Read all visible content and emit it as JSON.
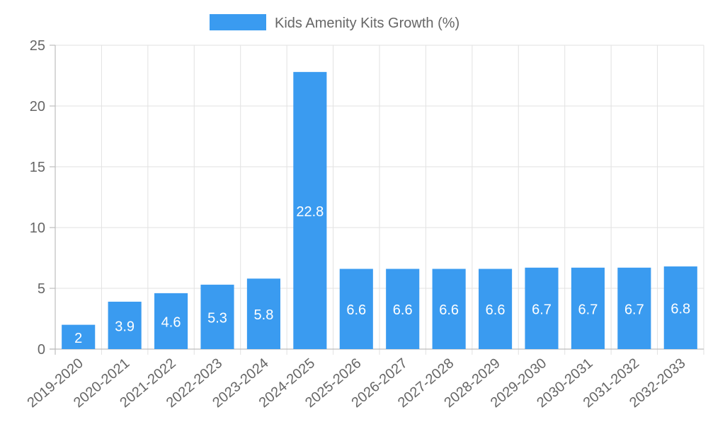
{
  "chart_data": {
    "type": "bar",
    "categories": [
      "2019-2020",
      "2020-2021",
      "2021-2022",
      "2022-2023",
      "2023-2024",
      "2024-2025",
      "2025-2026",
      "2026-2027",
      "2027-2028",
      "2028-2029",
      "2029-2030",
      "2030-2031",
      "2031-2032",
      "2032-2033"
    ],
    "series": [
      {
        "name": "Kids Amenity Kits Growth (%)",
        "values": [
          2,
          3.9,
          4.6,
          5.3,
          5.8,
          22.8,
          6.6,
          6.6,
          6.6,
          6.6,
          6.7,
          6.7,
          6.7,
          6.8
        ]
      }
    ],
    "title": "",
    "xlabel": "",
    "ylabel": "",
    "ylim": [
      0,
      25
    ],
    "yticks": [
      0,
      5,
      10,
      15,
      20,
      25
    ],
    "grid": true,
    "legend_position": "top-center",
    "bar_color": "#3a9bf0"
  }
}
